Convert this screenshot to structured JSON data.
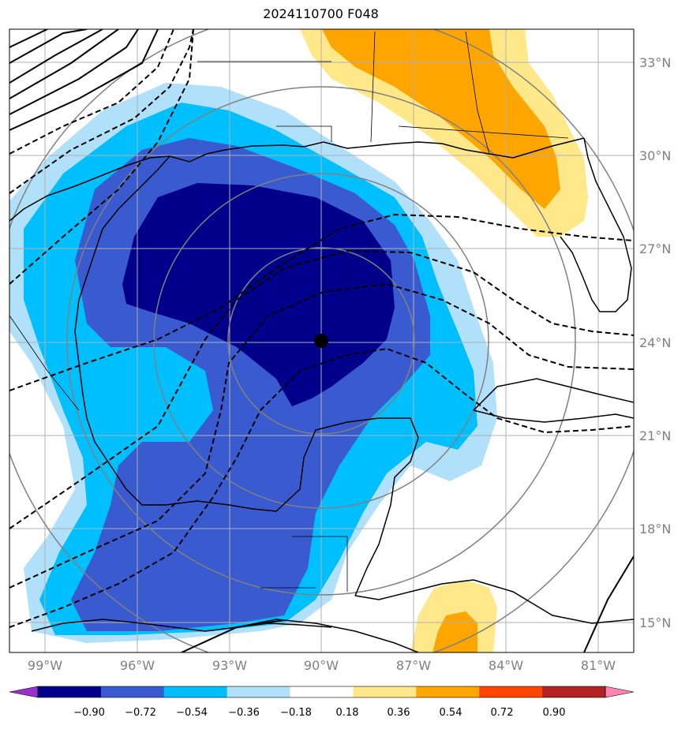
{
  "title": "2024110700 F048",
  "lat_labels": [
    "33°N",
    "30°N",
    "27°N",
    "24°N",
    "21°N",
    "18°N",
    "15°N"
  ],
  "lon_labels": [
    "99°W",
    "96°W",
    "93°W",
    "90°W",
    "87°W",
    "84°W",
    "81°W"
  ],
  "colorbar": {
    "ticks": [
      "−0.90",
      "−0.72",
      "−0.54",
      "−0.36",
      "−0.18",
      "0.18",
      "0.36",
      "0.54",
      "0.72",
      "0.90"
    ],
    "colors": [
      "#9932CC",
      "#00008B",
      "#3A5BD0",
      "#00BFFF",
      "#B0E0FA",
      "#FFFFFF",
      "#FFE88A",
      "#FFA500",
      "#FF4500",
      "#B22222",
      "#FF85B0"
    ]
  },
  "center_marker": {
    "lat": 24.0,
    "lon": -90.0
  }
}
